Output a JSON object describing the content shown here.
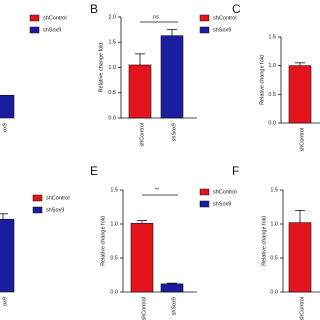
{
  "chart_data": [
    {
      "type": "bar",
      "ylim": [
        0,
        2.0
      ],
      "categories": [
        "ox9"
      ],
      "series": [
        {
          "name": "shControl",
          "color": "#e3141c",
          "values": [
            null
          ]
        },
        {
          "name": "shSox9",
          "color": "#1c1c9e",
          "values": [
            0.45
          ]
        }
      ]
    },
    {
      "type": "bar",
      "panel_label": "B",
      "ylabel": "Relative change fold",
      "annotation": "ns",
      "ylim": [
        0,
        2.0
      ],
      "yticks": [
        {
          "value": 0,
          "label": "0.0"
        },
        {
          "value": 0.5,
          "label": "0.5"
        },
        {
          "value": 1,
          "label": "1.0"
        },
        {
          "value": 1.5,
          "label": "1.5"
        },
        {
          "value": 2,
          "label": "2.0"
        }
      ],
      "categories": [
        "shControl",
        "shSox9"
      ],
      "series": [
        {
          "name": "shControl",
          "color": "#e3141c",
          "values": [
            1.05,
            null
          ],
          "errors": [
            0.22,
            null
          ]
        },
        {
          "name": "shSox9",
          "color": "#1c1c9e",
          "values": [
            null,
            1.63
          ],
          "errors": [
            null,
            0.12
          ]
        }
      ]
    },
    {
      "type": "bar",
      "panel_label": "C",
      "ylabel": "Relative change fold",
      "ylim": [
        0,
        1.5
      ],
      "yticks": [
        {
          "value": 0,
          "label": "0.0"
        },
        {
          "value": 0.5,
          "label": "0.5"
        },
        {
          "value": 1,
          "label": "1.0"
        },
        {
          "value": 1.5,
          "label": "1.5"
        }
      ],
      "categories": [
        "shControl"
      ],
      "series": [
        {
          "color": "#e3141c",
          "values": [
            1.0
          ],
          "errors": [
            0.05
          ]
        }
      ]
    },
    {
      "type": "bar",
      "ylim": [
        0,
        1.5
      ],
      "categories": [
        "ox9"
      ],
      "series": [
        {
          "name": "shControl",
          "color": "#e3141c",
          "values": [
            null
          ]
        },
        {
          "name": "shSox9",
          "color": "#1c1c9e",
          "values": [
            1.07
          ],
          "errors": [
            0.08
          ]
        }
      ]
    },
    {
      "type": "bar",
      "panel_label": "E",
      "ylabel": "Relative change fold",
      "annotation": "**",
      "ylim": [
        0,
        1.5
      ],
      "yticks": [
        {
          "value": 0,
          "label": "0.0"
        },
        {
          "value": 0.5,
          "label": "0.5"
        },
        {
          "value": 1,
          "label": "1.0"
        },
        {
          "value": 1.5,
          "label": "1.5"
        }
      ],
      "categories": [
        "shControl",
        "shSox9"
      ],
      "series": [
        {
          "name": "shControl",
          "color": "#e3141c",
          "values": [
            1.01,
            null
          ],
          "errors": [
            0.04,
            null
          ]
        },
        {
          "name": "shSox9",
          "color": "#1c1c9e",
          "values": [
            null,
            0.12
          ],
          "errors": [
            null,
            0.01
          ]
        }
      ]
    },
    {
      "type": "bar",
      "panel_label": "F",
      "ylabel": "Relative change fold",
      "ylim": [
        0,
        1.5
      ],
      "yticks": [
        {
          "value": 0,
          "label": "0.0"
        },
        {
          "value": 0.5,
          "label": "0.5"
        },
        {
          "value": 1,
          "label": "1.0"
        },
        {
          "value": 1.5,
          "label": "1.5"
        }
      ],
      "categories": [
        "shControl"
      ],
      "series": [
        {
          "color": "#e3141c",
          "values": [
            1.02
          ],
          "errors": [
            0.18
          ]
        }
      ]
    }
  ]
}
